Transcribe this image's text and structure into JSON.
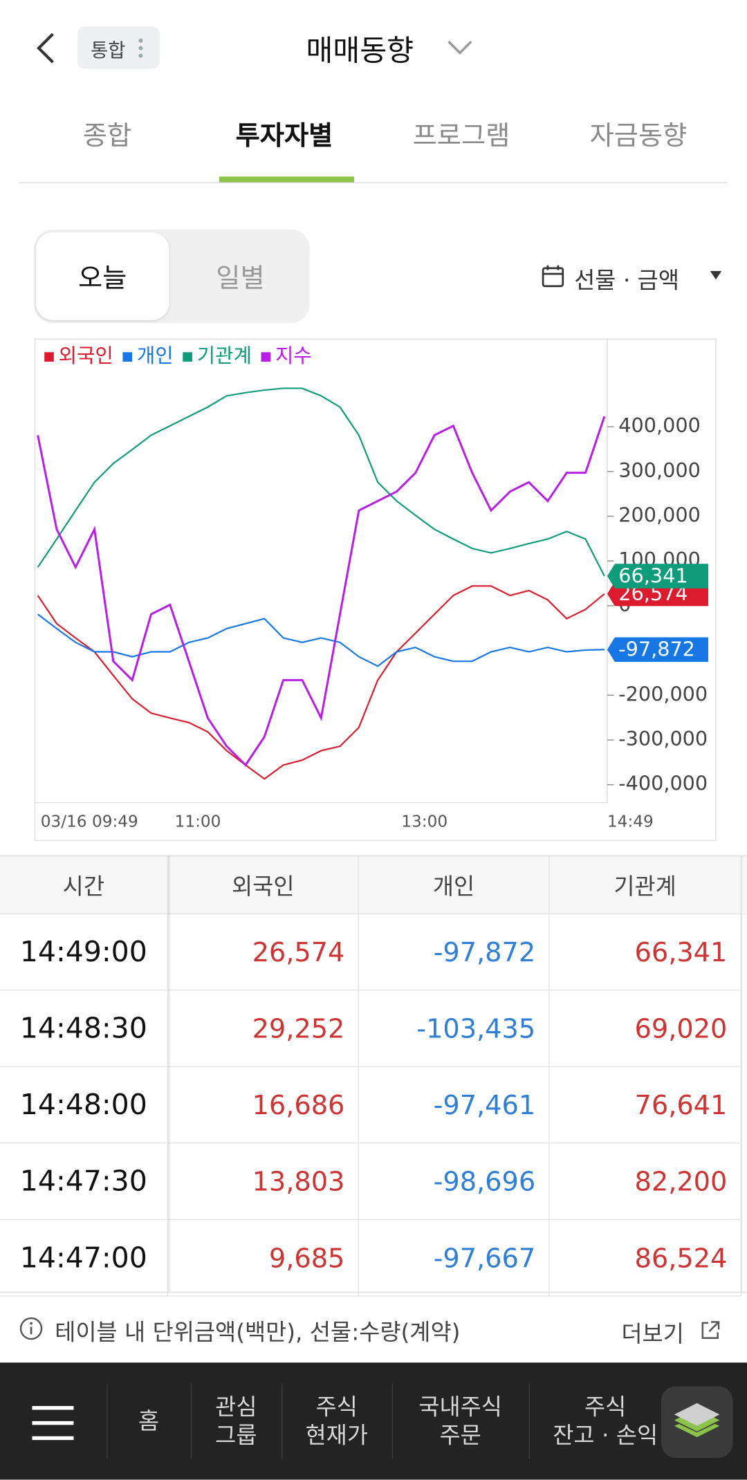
{
  "header": {
    "badge": "통합",
    "title": "매매동향"
  },
  "tabs": {
    "items": [
      "종합",
      "투자자별",
      "프로그램",
      "자금동향"
    ],
    "active": 1
  },
  "period_toggle": {
    "items": [
      "오늘",
      "일별"
    ],
    "active": 0
  },
  "filter": "선물 · 금액",
  "chart_data": {
    "type": "line",
    "x": [
      "09:49",
      "09:59",
      "10:09",
      "10:19",
      "10:29",
      "10:39",
      "10:49",
      "10:59",
      "11:09",
      "11:19",
      "11:29",
      "11:39",
      "11:49",
      "11:59",
      "12:09",
      "12:19",
      "12:29",
      "12:39",
      "12:49",
      "12:59",
      "13:09",
      "13:19",
      "13:29",
      "13:39",
      "13:49",
      "13:59",
      "14:09",
      "14:19",
      "14:29",
      "14:39",
      "14:49"
    ],
    "xlim": [
      "09:49",
      "14:49"
    ],
    "xticks": [
      {
        "value": "09:49",
        "label": "03/16 09:49"
      },
      "11:00",
      "13:00",
      "14:49"
    ],
    "ylim": [
      -440000,
      594000
    ],
    "yticks": [
      {
        "value": 400000,
        "label": "400,000"
      },
      {
        "value": 300000,
        "label": "300,000"
      },
      {
        "value": 200000,
        "label": "200,000"
      },
      {
        "value": 100000,
        "label": "100,000"
      },
      0,
      {
        "value": -100000,
        "label": "-100,000"
      },
      {
        "value": -200000,
        "label": "-200,000"
      },
      {
        "value": -300000,
        "label": "-300,000"
      },
      {
        "value": -400000,
        "label": "-400,000"
      }
    ],
    "series": [
      {
        "name": "외국인",
        "color": "#dc1c2e",
        "values": [
          23000,
          -40000,
          -72000,
          -103000,
          -156000,
          -208000,
          -240000,
          -251000,
          -261000,
          -282000,
          -324000,
          -356000,
          -387000,
          -356000,
          -345000,
          -324000,
          -314000,
          -272000,
          -166000,
          -103000,
          -61000,
          -19000,
          23000,
          44000,
          44000,
          23000,
          34000,
          13000,
          -29000,
          -8000,
          26574
        ],
        "value_labels": [
          null,
          null,
          null,
          null,
          null,
          null,
          null,
          null,
          null,
          null,
          null,
          null,
          null,
          null,
          null,
          null,
          null,
          null,
          null,
          null,
          null,
          null,
          null,
          null,
          null,
          null,
          null,
          null,
          null,
          null,
          "26,574"
        ]
      },
      {
        "name": "개인",
        "color": "#1677e5",
        "values": [
          -19000,
          -51000,
          -82000,
          -103000,
          -103000,
          -114000,
          -103000,
          -103000,
          -82000,
          -72000,
          -51000,
          -40000,
          -29000,
          -72000,
          -82000,
          -72000,
          -82000,
          -114000,
          -135000,
          -103000,
          -93000,
          -114000,
          -124000,
          -124000,
          -103000,
          -93000,
          -103000,
          -93000,
          -103000,
          -99000,
          -97872
        ],
        "value_labels": [
          null,
          null,
          null,
          null,
          null,
          null,
          null,
          null,
          null,
          null,
          null,
          null,
          null,
          null,
          null,
          null,
          null,
          null,
          null,
          null,
          null,
          null,
          null,
          null,
          null,
          null,
          null,
          null,
          null,
          null,
          "-97,872"
        ]
      },
      {
        "name": "기관계",
        "color": "#0e9c7a",
        "values": [
          86000,
          149000,
          213000,
          276000,
          318000,
          349000,
          381000,
          402000,
          423000,
          444000,
          469000,
          476000,
          482000,
          486000,
          486000,
          469000,
          444000,
          381000,
          276000,
          234000,
          202000,
          171000,
          149000,
          128000,
          118000,
          128000,
          139000,
          149000,
          166000,
          149000,
          66341
        ],
        "value_labels": [
          null,
          null,
          null,
          null,
          null,
          null,
          null,
          null,
          null,
          null,
          null,
          null,
          null,
          null,
          null,
          null,
          null,
          null,
          null,
          null,
          null,
          null,
          null,
          null,
          null,
          null,
          null,
          null,
          null,
          null,
          "66,341"
        ]
      },
      {
        "name": "지수",
        "color": "#b81ee6",
        "values": [
          381000,
          171000,
          86000,
          171000,
          -124000,
          -166000,
          -19000,
          2000,
          -124000,
          -251000,
          -314000,
          -356000,
          -293000,
          -166000,
          -166000,
          -251000,
          -19000,
          213000,
          234000,
          255000,
          297000,
          381000,
          402000,
          297000,
          213000,
          255000,
          276000,
          234000,
          297000,
          297000,
          423000
        ]
      }
    ]
  },
  "table": {
    "columns": [
      "시간",
      "외국인",
      "개인",
      "기관계"
    ],
    "rows": [
      [
        "14:49:00",
        "26,574",
        "-97,872",
        "66,341"
      ],
      [
        "14:48:30",
        "29,252",
        "-103,435",
        "69,020"
      ],
      [
        "14:48:00",
        "16,686",
        "-97,461",
        "76,641"
      ],
      [
        "14:47:30",
        "13,803",
        "-98,696",
        "82,200"
      ],
      [
        "14:47:00",
        "9,685",
        "-97,667",
        "86,524"
      ]
    ]
  },
  "footnote": "테이블 내 단위금액(백만), 선물:수량(계약)",
  "more": "더보기",
  "nav": [
    {
      "lines": [
        "홈"
      ]
    },
    {
      "lines": [
        "관심",
        "그룹"
      ]
    },
    {
      "lines": [
        "주식",
        "현재가"
      ]
    },
    {
      "lines": [
        "국내주식",
        "주문"
      ]
    },
    {
      "lines": [
        "주식",
        "잔고 · 손익"
      ]
    }
  ]
}
